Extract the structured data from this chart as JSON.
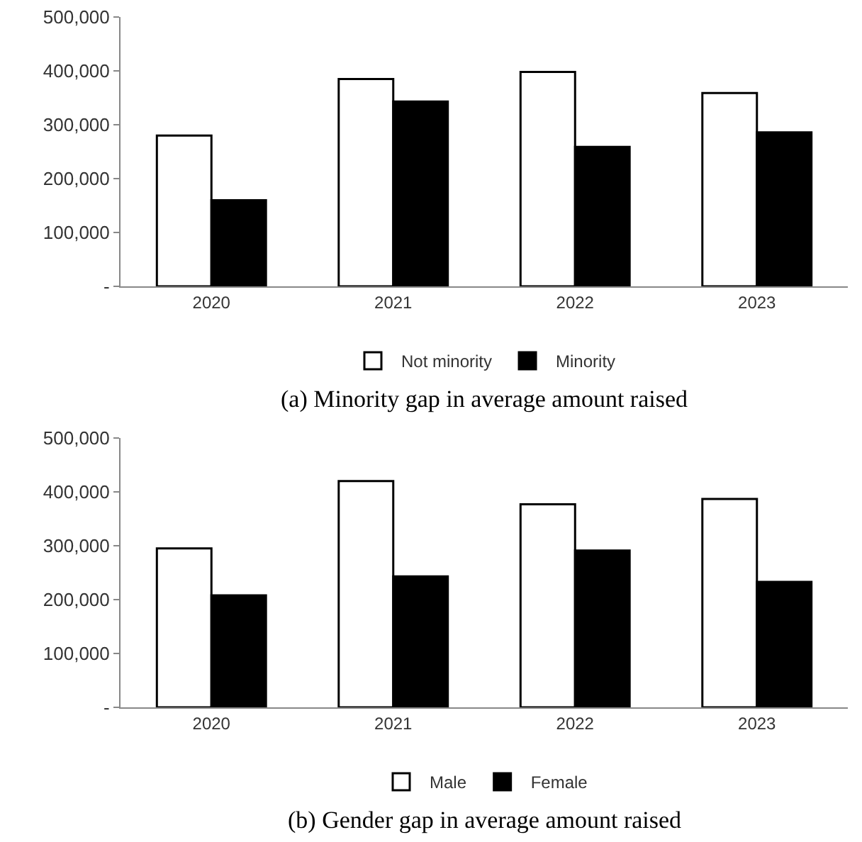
{
  "chart_data": [
    {
      "type": "bar",
      "categories": [
        "2020",
        "2021",
        "2022",
        "2023"
      ],
      "series": [
        {
          "name": "Not minority",
          "color": "#ffffff",
          "values": [
            280000,
            385000,
            398000,
            359000
          ]
        },
        {
          "name": "Minority",
          "color": "#000000",
          "values": [
            160000,
            343000,
            259000,
            286000
          ]
        }
      ],
      "ylim": [
        0,
        500000
      ],
      "yticks": [
        {
          "value": 0,
          "label": "-"
        },
        {
          "value": 100000,
          "label": "100,000"
        },
        {
          "value": 200000,
          "label": "200,000"
        },
        {
          "value": 300000,
          "label": "300,000"
        },
        {
          "value": 400000,
          "label": "400,000"
        },
        {
          "value": 500000,
          "label": "500,000"
        }
      ],
      "legend": "bottom",
      "annotations": [
        "(a) Minority gap in average amount raised"
      ]
    },
    {
      "type": "bar",
      "categories": [
        "2020",
        "2021",
        "2022",
        "2023"
      ],
      "series": [
        {
          "name": "Male",
          "color": "#ffffff",
          "values": [
            295000,
            420000,
            377000,
            387000
          ]
        },
        {
          "name": "Female",
          "color": "#000000",
          "values": [
            208000,
            243000,
            291000,
            233000
          ]
        }
      ],
      "ylim": [
        0,
        500000
      ],
      "yticks": [
        {
          "value": 0,
          "label": "-"
        },
        {
          "value": 100000,
          "label": "100,000"
        },
        {
          "value": 200000,
          "label": "200,000"
        },
        {
          "value": 300000,
          "label": "300,000"
        },
        {
          "value": 400000,
          "label": "400,000"
        },
        {
          "value": 500000,
          "label": "500,000"
        }
      ],
      "legend": "bottom",
      "annotations": [
        "(b) Gender gap in average amount raised"
      ]
    }
  ]
}
